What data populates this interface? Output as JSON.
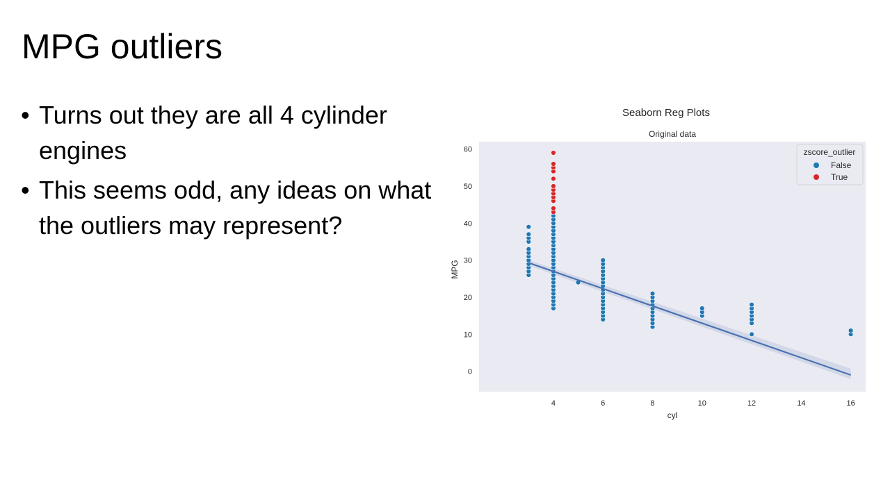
{
  "slide": {
    "title": "MPG outliers",
    "bullets": [
      "Turns out they are all 4 cylinder engines",
      "This seems odd, any ideas on what the outliers may represent?"
    ]
  },
  "colors": {
    "plot_background": "#eaeaf2",
    "false_points": "#1f77b4",
    "true_points": "#d62728",
    "regression_line": "#4c72b0"
  },
  "chart_data": {
    "type": "scatter",
    "title": "Seaborn Reg Plots",
    "subtitle": "Original data",
    "xlabel": "cyl",
    "ylabel": "MPG",
    "xlim": [
      1.0,
      16.6
    ],
    "ylim": [
      -5.5,
      62
    ],
    "xticks": [
      4,
      6,
      8,
      10,
      12,
      14,
      16
    ],
    "yticks": [
      0,
      10,
      20,
      30,
      40,
      50,
      60
    ],
    "grid": false,
    "legend": {
      "title": "zscore_outlier",
      "placement": "top-right",
      "entries": [
        "False",
        "True"
      ]
    },
    "series": [
      {
        "name": "False",
        "color": "#1f77b4",
        "points": [
          [
            3,
            26
          ],
          [
            3,
            27
          ],
          [
            3,
            28
          ],
          [
            3,
            29
          ],
          [
            3,
            30
          ],
          [
            3,
            31
          ],
          [
            3,
            32
          ],
          [
            3,
            33
          ],
          [
            3,
            35
          ],
          [
            3,
            36
          ],
          [
            3,
            37
          ],
          [
            3,
            39
          ],
          [
            4,
            17
          ],
          [
            4,
            18
          ],
          [
            4,
            19
          ],
          [
            4,
            20
          ],
          [
            4,
            21
          ],
          [
            4,
            22
          ],
          [
            4,
            23
          ],
          [
            4,
            24
          ],
          [
            4,
            25
          ],
          [
            4,
            26
          ],
          [
            4,
            27
          ],
          [
            4,
            28
          ],
          [
            4,
            29
          ],
          [
            4,
            30
          ],
          [
            4,
            31
          ],
          [
            4,
            32
          ],
          [
            4,
            33
          ],
          [
            4,
            34
          ],
          [
            4,
            35
          ],
          [
            4,
            36
          ],
          [
            4,
            37
          ],
          [
            4,
            38
          ],
          [
            4,
            39
          ],
          [
            4,
            40
          ],
          [
            4,
            41
          ],
          [
            4,
            42
          ],
          [
            5,
            24
          ],
          [
            6,
            14
          ],
          [
            6,
            15
          ],
          [
            6,
            16
          ],
          [
            6,
            17
          ],
          [
            6,
            18
          ],
          [
            6,
            19
          ],
          [
            6,
            20
          ],
          [
            6,
            21
          ],
          [
            6,
            22
          ],
          [
            6,
            23
          ],
          [
            6,
            24
          ],
          [
            6,
            25
          ],
          [
            6,
            26
          ],
          [
            6,
            27
          ],
          [
            6,
            28
          ],
          [
            6,
            29
          ],
          [
            6,
            30
          ],
          [
            8,
            12
          ],
          [
            8,
            13
          ],
          [
            8,
            14
          ],
          [
            8,
            15
          ],
          [
            8,
            16
          ],
          [
            8,
            17
          ],
          [
            8,
            18
          ],
          [
            8,
            19
          ],
          [
            8,
            20
          ],
          [
            8,
            21
          ],
          [
            10,
            15
          ],
          [
            10,
            16
          ],
          [
            10,
            17
          ],
          [
            12,
            10
          ],
          [
            12,
            13
          ],
          [
            12,
            14
          ],
          [
            12,
            15
          ],
          [
            12,
            16
          ],
          [
            12,
            17
          ],
          [
            12,
            18
          ],
          [
            16,
            10
          ],
          [
            16,
            11
          ]
        ]
      },
      {
        "name": "True",
        "color": "#d62728",
        "points": [
          [
            4,
            43
          ],
          [
            4,
            44
          ],
          [
            4,
            46
          ],
          [
            4,
            47
          ],
          [
            4,
            48
          ],
          [
            4,
            49
          ],
          [
            4,
            50
          ],
          [
            4,
            52
          ],
          [
            4,
            54
          ],
          [
            4,
            55
          ],
          [
            4,
            56
          ],
          [
            4,
            59
          ]
        ]
      }
    ],
    "regression": {
      "x": [
        3,
        16
      ],
      "y": [
        29.3,
        -1.0
      ]
    }
  }
}
